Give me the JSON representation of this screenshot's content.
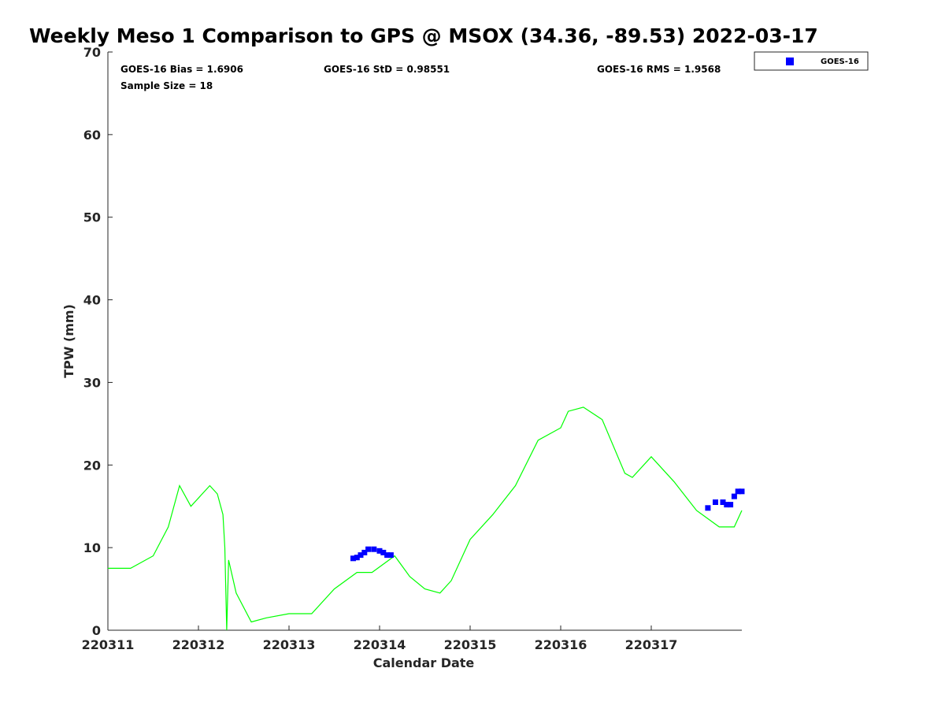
{
  "chart_data": {
    "type": "scatter",
    "title": "Weekly Meso 1 Comparison to GPS @ MSOX (34.36, -89.53) 2022-03-17",
    "xlabel": "Calendar Date",
    "ylabel": "TPW (mm)",
    "xlim": [
      "2022-03-11",
      "2022-03-18"
    ],
    "ylim": [
      0,
      70
    ],
    "x_tick_labels": [
      "220311",
      "220312",
      "220313",
      "220314",
      "220315",
      "220316",
      "220317"
    ],
    "y_tick_labels": [
      "0",
      "10",
      "20",
      "30",
      "40",
      "50",
      "60",
      "70"
    ],
    "grid": false,
    "legend_position": "top-right, outside plot",
    "stats": {
      "bias": "GOES-16 Bias = 1.6906",
      "std": "GOES-16 StD = 0.98551",
      "rms": "GOES-16 RMS = 1.9568",
      "sample": "Sample Size = 18"
    },
    "series": [
      {
        "name": "GOES-16",
        "kind": "scatter",
        "marker": "square",
        "color": "#0000ff",
        "x": [
          "2022-03-13 17:00",
          "2022-03-13 18:00",
          "2022-03-13 19:00",
          "2022-03-13 20:00",
          "2022-03-13 21:00",
          "2022-03-13 22:30",
          "2022-03-14 00:00",
          "2022-03-14 01:00",
          "2022-03-14 02:00",
          "2022-03-14 03:00",
          "2022-03-17 15:00",
          "2022-03-17 17:00",
          "2022-03-17 19:00",
          "2022-03-17 20:00",
          "2022-03-17 21:00",
          "2022-03-17 22:00",
          "2022-03-17 23:00",
          "2022-03-18 00:00"
        ],
        "y": [
          8.7,
          8.8,
          9.1,
          9.4,
          9.8,
          9.8,
          9.6,
          9.4,
          9.1,
          9.1,
          14.8,
          15.5,
          15.5,
          15.2,
          15.2,
          16.2,
          16.8,
          16.8
        ]
      },
      {
        "name": "GPS",
        "kind": "line",
        "color": "#00ff00",
        "x": [
          "2022-03-11 00:00",
          "2022-03-11 06:00",
          "2022-03-11 12:00",
          "2022-03-11 16:00",
          "2022-03-11 19:00",
          "2022-03-11 22:00",
          "2022-03-12 03:00",
          "2022-03-12 05:00",
          "2022-03-12 06:30",
          "2022-03-12 07:00",
          "2022-03-12 07:30",
          "2022-03-12 08:00",
          "2022-03-12 10:00",
          "2022-03-12 14:00",
          "2022-03-12 18:00",
          "2022-03-13 00:00",
          "2022-03-13 06:00",
          "2022-03-13 12:00",
          "2022-03-13 18:00",
          "2022-03-13 22:00",
          "2022-03-14 04:00",
          "2022-03-14 08:00",
          "2022-03-14 12:00",
          "2022-03-14 16:00",
          "2022-03-14 19:00",
          "2022-03-15 00:00",
          "2022-03-15 06:00",
          "2022-03-15 12:00",
          "2022-03-15 18:00",
          "2022-03-16 00:00",
          "2022-03-16 02:00",
          "2022-03-16 06:00",
          "2022-03-16 11:00",
          "2022-03-16 17:00",
          "2022-03-16 19:00",
          "2022-03-17 00:00",
          "2022-03-17 06:00",
          "2022-03-17 12:00",
          "2022-03-17 18:00",
          "2022-03-17 22:00",
          "2022-03-18 00:00"
        ],
        "y": [
          7.5,
          7.5,
          9.0,
          12.5,
          17.5,
          15.0,
          17.5,
          16.5,
          14.0,
          10.0,
          0.0,
          8.5,
          4.5,
          1.0,
          1.5,
          2.0,
          2.0,
          5.0,
          7.0,
          7.0,
          9.0,
          6.5,
          5.0,
          4.5,
          6.0,
          11.0,
          14.0,
          17.5,
          23.0,
          24.5,
          26.5,
          27.0,
          25.5,
          19.0,
          18.5,
          21.0,
          18.0,
          14.5,
          12.5,
          12.5,
          14.5
        ]
      }
    ]
  }
}
